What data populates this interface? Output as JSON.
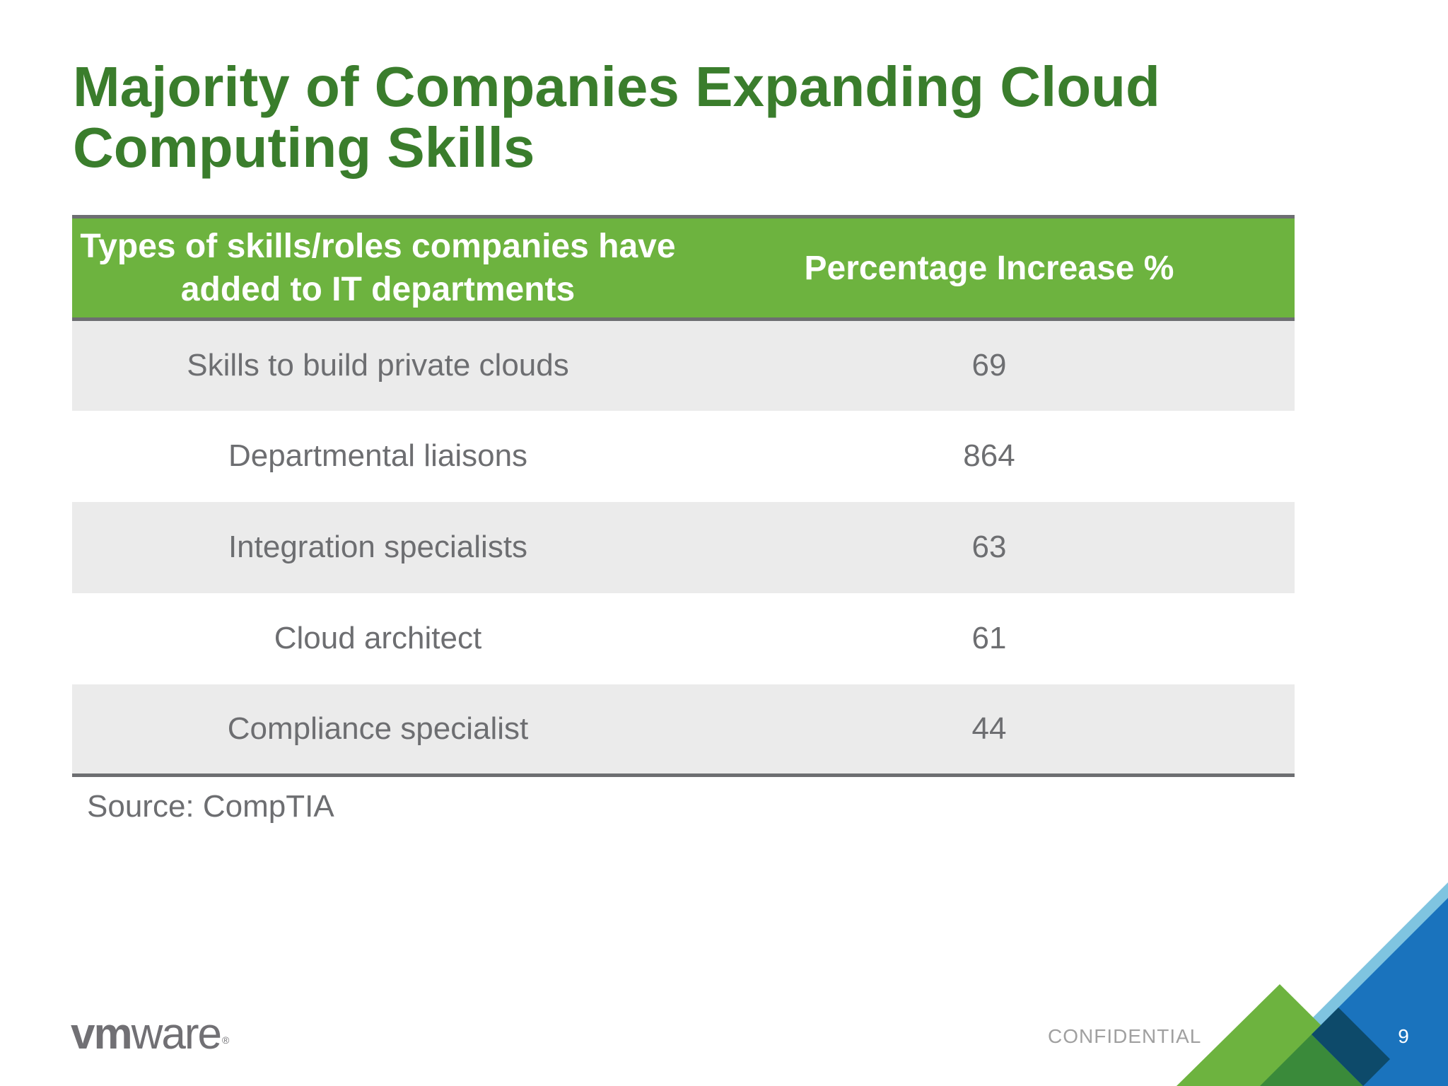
{
  "slide": {
    "title": "Majority of Companies Expanding Cloud Computing Skills"
  },
  "table": {
    "headers": [
      "Types of skills/roles companies have added to IT departments",
      "Percentage Increase %"
    ],
    "rows": [
      [
        "Skills to build private clouds",
        "69"
      ],
      [
        "Departmental liaisons",
        "864"
      ],
      [
        "Integration specialists",
        "63"
      ],
      [
        "Cloud architect",
        "61"
      ],
      [
        "Compliance specialist",
        "44"
      ]
    ]
  },
  "source": "Source: CompTIA",
  "footer": {
    "logo_vm": "vm",
    "logo_ware": "ware",
    "logo_reg": "®",
    "confidential": "CONFIDENTIAL",
    "page_number": "9"
  },
  "colors": {
    "title": "#3a7d2c",
    "header_bg": "#6db33f",
    "row_alt_bg": "#ebebeb",
    "text_gray": "#6d6e71",
    "decor_green": "#6db33f",
    "decor_dark_green": "#3a8a3a",
    "decor_light_blue": "#7fc4e0",
    "decor_blue": "#1a73bd",
    "decor_navy": "#0d4a6a"
  }
}
